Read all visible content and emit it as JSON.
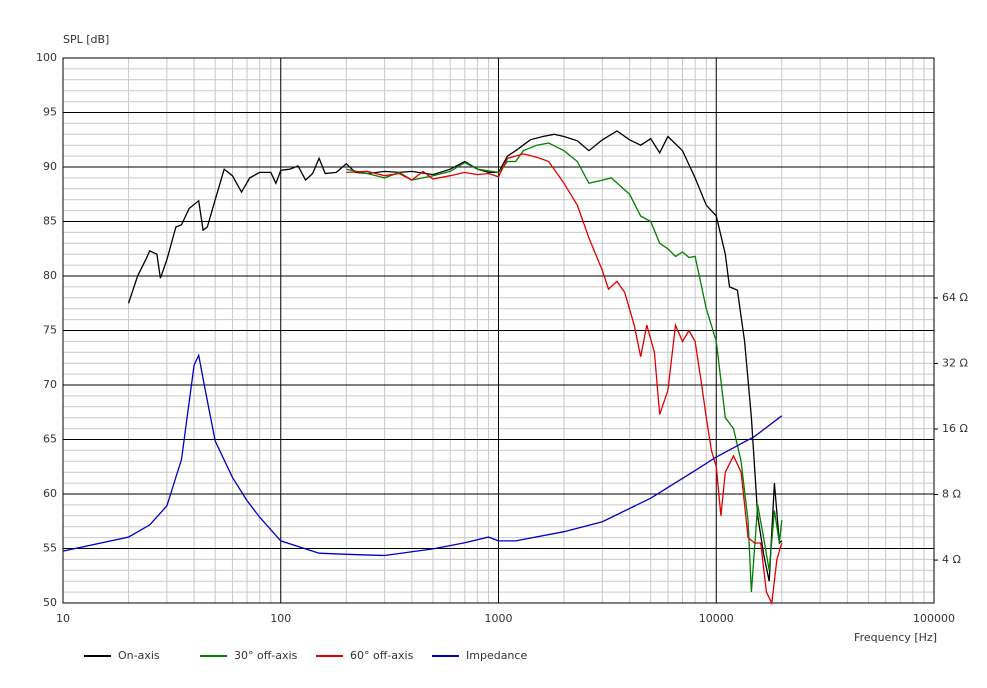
{
  "chart_data": {
    "type": "line",
    "y_label": "SPL [dB]",
    "x_label": "Frequency [Hz]",
    "xscale": "log",
    "xlim": [
      10,
      100000
    ],
    "xticks": [
      10,
      100,
      1000,
      10000,
      100000
    ],
    "ylim": [
      50,
      100
    ],
    "yticks": [
      50,
      55,
      60,
      65,
      70,
      75,
      80,
      85,
      90,
      95,
      100
    ],
    "y2scale": "log",
    "y2lim": [
      2.54,
      810
    ],
    "y2ticks": [
      {
        "value": 4,
        "label": "4 Ω"
      },
      {
        "value": 8,
        "label": "8 Ω"
      },
      {
        "value": 16,
        "label": "16 Ω"
      },
      {
        "value": 32,
        "label": "32 Ω"
      },
      {
        "value": 64,
        "label": "64 Ω"
      }
    ],
    "grid": true,
    "legend": "bottom",
    "series": [
      {
        "name": "On-axis",
        "color": "#000000",
        "x": [
          20,
          22,
          24,
          25,
          27,
          28,
          30,
          33,
          35,
          38,
          42,
          44,
          46,
          50,
          55,
          60,
          66,
          72,
          80,
          90,
          95,
          100,
          110,
          120,
          130,
          140,
          150,
          160,
          180,
          200,
          220,
          250,
          300,
          350,
          400,
          500,
          600,
          700,
          800,
          900,
          1000,
          1100,
          1200,
          1400,
          1600,
          1800,
          2000,
          2300,
          2600,
          3000,
          3500,
          4000,
          4500,
          5000,
          5500,
          6000,
          7000,
          8000,
          9000,
          10000,
          11000,
          11500,
          12500,
          13500,
          14500,
          15500,
          16500,
          17500,
          18500,
          19500,
          20000
        ],
        "values": [
          77.5,
          80,
          81.5,
          82.3,
          82,
          79.8,
          81.5,
          84.5,
          84.7,
          86.2,
          86.9,
          84.2,
          84.5,
          87,
          89.8,
          89.2,
          87.7,
          89,
          89.5,
          89.5,
          88.5,
          89.7,
          89.8,
          90.1,
          88.8,
          89.4,
          90.8,
          89.4,
          89.5,
          90.3,
          89.5,
          89.4,
          89.6,
          89.5,
          89.6,
          89.3,
          89.8,
          90.5,
          89.8,
          89.5,
          89.5,
          91,
          91.5,
          92.5,
          92.8,
          93,
          92.8,
          92.4,
          91.5,
          92.5,
          93.3,
          92.5,
          92,
          92.6,
          91.3,
          92.8,
          91.5,
          89,
          86.5,
          85.5,
          82,
          79,
          78.7,
          74,
          67,
          58,
          54.5,
          52,
          61,
          55.5,
          55.7
        ]
      },
      {
        "name": "30° off-axis",
        "color": "#008000",
        "x": [
          200,
          250,
          300,
          350,
          400,
          500,
          600,
          700,
          800,
          1000,
          1100,
          1200,
          1300,
          1500,
          1700,
          2000,
          2300,
          2600,
          3000,
          3300,
          4000,
          4500,
          5000,
          5500,
          6000,
          6500,
          7000,
          7500,
          8000,
          9000,
          10000,
          11000,
          12000,
          13000,
          14000,
          14500,
          15500,
          16500,
          17500,
          18500,
          19500,
          20000
        ],
        "values": [
          89.8,
          89.4,
          89,
          89.5,
          88.8,
          89.2,
          89.6,
          90.4,
          89.8,
          89.5,
          90.5,
          90.5,
          91.5,
          92,
          92.2,
          91.5,
          90.5,
          88.5,
          88.8,
          89,
          87.5,
          85.5,
          85,
          83,
          82.5,
          81.8,
          82.2,
          81.7,
          81.8,
          77,
          74,
          67,
          66,
          63,
          57.5,
          51,
          59,
          56,
          53,
          58.5,
          55.5,
          57.6
        ]
      },
      {
        "name": "60° off-axis",
        "color": "#e00000",
        "x": [
          200,
          250,
          300,
          350,
          400,
          450,
          500,
          600,
          700,
          800,
          900,
          1000,
          1100,
          1300,
          1500,
          1700,
          2000,
          2300,
          2600,
          3000,
          3200,
          3500,
          3800,
          4200,
          4500,
          4800,
          5200,
          5500,
          6000,
          6500,
          7000,
          7500,
          8000,
          8500,
          9000,
          9500,
          10000,
          10500,
          11000,
          12000,
          13000,
          14000,
          15000,
          16000,
          17000,
          18000,
          19000,
          20000
        ],
        "values": [
          89.5,
          89.6,
          89.2,
          89.4,
          88.8,
          89.6,
          88.9,
          89.2,
          89.5,
          89.3,
          89.4,
          89.1,
          90.8,
          91.2,
          90.9,
          90.5,
          88.5,
          86.5,
          83.5,
          80.5,
          78.8,
          79.5,
          78.5,
          75.5,
          72.6,
          75.5,
          73,
          67.3,
          69.5,
          75.5,
          74,
          75,
          74,
          70.5,
          67,
          64,
          62.5,
          58,
          62,
          63.5,
          62,
          56,
          55.5,
          55.5,
          51,
          50,
          54,
          55.5
        ]
      },
      {
        "name": "Impedance",
        "color": "#0000c0",
        "axis": "y2",
        "x": [
          10,
          20,
          25,
          30,
          35,
          40,
          42,
          45,
          50,
          60,
          70,
          80,
          100,
          150,
          200,
          300,
          500,
          700,
          900,
          1000,
          1200,
          2000,
          3000,
          5000,
          8000,
          10000,
          15000,
          20000
        ],
        "values": [
          4.4,
          5.1,
          5.8,
          7.1,
          11.6,
          31.5,
          34.9,
          24.2,
          14.1,
          9.6,
          7.5,
          6.3,
          4.9,
          4.3,
          4.25,
          4.2,
          4.5,
          4.8,
          5.1,
          4.9,
          4.9,
          5.4,
          6.0,
          7.7,
          10.3,
          11.9,
          14.8,
          18.4
        ]
      }
    ]
  }
}
